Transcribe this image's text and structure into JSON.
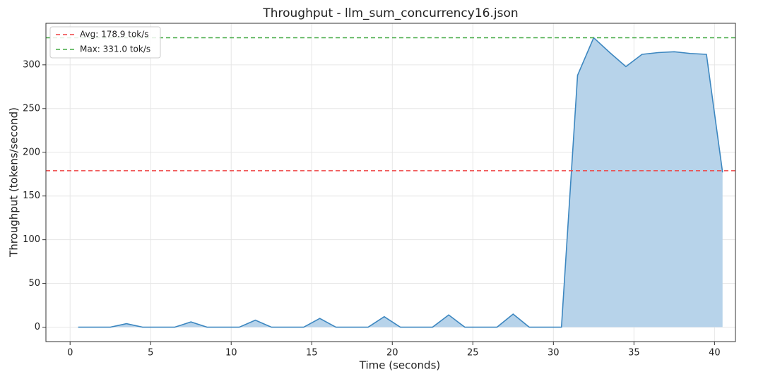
{
  "chart_data": {
    "type": "area",
    "title": "Throughput - llm_sum_concurrency16.json",
    "x_label": "Time (seconds)",
    "y_label": "Throughput (tokens/second)",
    "x": [
      0.5,
      1.5,
      2.5,
      3.5,
      4.5,
      5.5,
      6.5,
      7.5,
      8.5,
      9.5,
      10.5,
      11.5,
      12.5,
      13.5,
      14.5,
      15.5,
      16.5,
      17.5,
      18.5,
      19.5,
      20.5,
      21.5,
      22.5,
      23.5,
      24.5,
      25.5,
      26.5,
      27.5,
      28.5,
      29.5,
      30.5,
      31.5,
      32.5,
      33.5,
      34.5,
      35.5,
      36.5,
      37.5,
      38.5,
      39.5,
      40.5
    ],
    "series": [
      {
        "color": "#3d87c0",
        "fill": "#b7d3ea",
        "values": [
          0,
          0,
          0,
          4,
          0,
          0,
          0,
          6,
          0,
          0,
          0,
          8,
          0,
          0,
          0,
          10,
          0,
          0,
          0,
          12,
          0,
          0,
          0,
          14,
          0,
          0,
          0,
          15,
          0,
          0,
          0,
          288,
          331,
          314,
          298,
          312,
          314,
          315,
          313,
          312,
          177
        ]
      }
    ],
    "hlines": [
      {
        "name": "Avg: 178.9 tok/s",
        "value": 178.9,
        "color": "#ee4444"
      },
      {
        "name": "Max: 331.0 tok/s",
        "value": 331.0,
        "color": "#44aa44"
      }
    ],
    "xlim": [
      -1.5,
      41.3
    ],
    "ylim": [
      -16.5,
      347.5
    ],
    "xticks": [
      0,
      5,
      10,
      15,
      20,
      25,
      30,
      35,
      40
    ],
    "yticks": [
      0,
      50,
      100,
      150,
      200,
      250,
      300
    ],
    "grid": true,
    "legend": "upper-left"
  }
}
